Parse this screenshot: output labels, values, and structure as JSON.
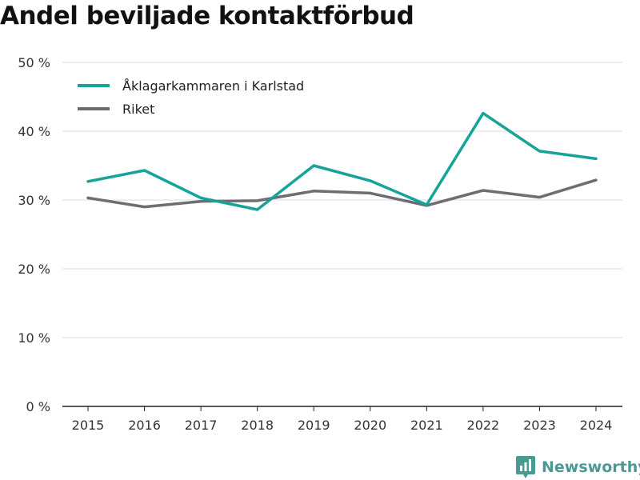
{
  "title": "Andel beviljade kontaktförbud",
  "brand": {
    "name": "Newsworthy",
    "icon": "newsworthy-logo-icon"
  },
  "chart_data": {
    "type": "line",
    "title": "Andel beviljade kontaktförbud",
    "x": [
      "2015",
      "2016",
      "2017",
      "2018",
      "2019",
      "2020",
      "2021",
      "2022",
      "2023",
      "2024"
    ],
    "series": [
      {
        "name": "Åklagarkammaren i Karlstad",
        "color": "#15a39a",
        "values": [
          32.7,
          34.3,
          30.3,
          28.6,
          35.0,
          32.8,
          29.3,
          42.6,
          37.1,
          36.0
        ]
      },
      {
        "name": "Riket",
        "color": "#6e6d73",
        "values": [
          30.3,
          29.0,
          29.8,
          29.9,
          31.3,
          31.0,
          29.2,
          31.4,
          30.4,
          32.9
        ]
      }
    ],
    "ylim": [
      0,
      50
    ],
    "yticks": [
      0,
      10,
      20,
      30,
      40,
      50
    ],
    "ytick_labels": [
      "0 %",
      "10 %",
      "20 %",
      "30 %",
      "40 %",
      "50 %"
    ],
    "xlabel": "",
    "ylabel": "",
    "grid": true,
    "legend": "top-left"
  }
}
